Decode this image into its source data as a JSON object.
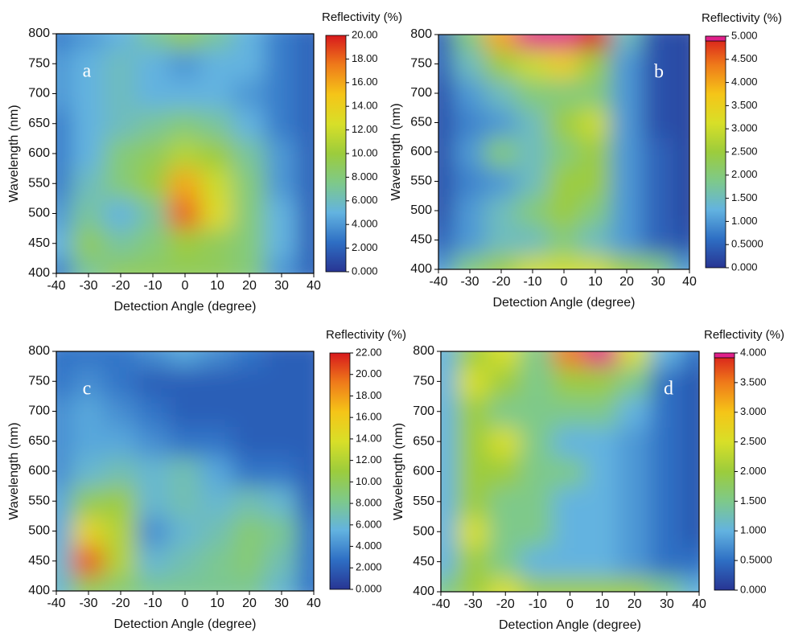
{
  "chart_data": [
    {
      "type": "heatmap",
      "label": "a",
      "x_label": "Detection Angle (degree)",
      "y_label": "Wavelength (nm)",
      "colorbar_label": "Reflectivity (%)",
      "x": [
        -40,
        -30,
        -20,
        -10,
        0,
        10,
        20,
        30,
        40
      ],
      "y": [
        400,
        450,
        500,
        550,
        600,
        650,
        700,
        750,
        800
      ],
      "values": [
        [
          3,
          7,
          9,
          9,
          9,
          9,
          8,
          4,
          2
        ],
        [
          5,
          9,
          7,
          8,
          10,
          9,
          8,
          5,
          2
        ],
        [
          4,
          7,
          5,
          7,
          18,
          13,
          8,
          5,
          2
        ],
        [
          3,
          6,
          8,
          10,
          16,
          12,
          8,
          4,
          2
        ],
        [
          3,
          5,
          8,
          9,
          11,
          10,
          7,
          4,
          2
        ],
        [
          3,
          5,
          6,
          7,
          8,
          7,
          5,
          3,
          2
        ],
        [
          4,
          5,
          6,
          5,
          5,
          5,
          4,
          3,
          2
        ],
        [
          4,
          5,
          6,
          5,
          4,
          5,
          5,
          3,
          2
        ],
        [
          3,
          4,
          5,
          7,
          9,
          7,
          5,
          3,
          2
        ]
      ],
      "xlim": [
        -40,
        40
      ],
      "ylim": [
        400,
        800
      ],
      "xticks": [
        -40,
        -30,
        -20,
        -10,
        0,
        10,
        20,
        30,
        40
      ],
      "yticks": [
        400,
        450,
        500,
        550,
        600,
        650,
        700,
        750,
        800
      ],
      "zlim": [
        0,
        20
      ],
      "zticks": [
        {
          "value": 0,
          "label": "0.000"
        },
        {
          "value": 2,
          "label": "2.000"
        },
        {
          "value": 4,
          "label": "4.000"
        },
        {
          "value": 6,
          "label": "6.000"
        },
        {
          "value": 8,
          "label": "8.000"
        },
        {
          "value": 10,
          "label": "10.00"
        },
        {
          "value": 12,
          "label": "12.00"
        },
        {
          "value": 14,
          "label": "14.00"
        },
        {
          "value": 16,
          "label": "16.00"
        },
        {
          "value": 18,
          "label": "18.00"
        },
        {
          "value": 20,
          "label": "20.00"
        }
      ],
      "colormap": [
        "#283593",
        "#2e6fc4",
        "#63b3e0",
        "#7ec98a",
        "#9ccc3c",
        "#d8df28",
        "#f5c518",
        "#ef7b1a",
        "#d7191c"
      ]
    },
    {
      "type": "heatmap",
      "label": "b",
      "x_label": "Detection Angle (degree)",
      "y_label": "Wavelength (nm)",
      "colorbar_label": "Reflectivity (%)",
      "x": [
        -40,
        -30,
        -20,
        -10,
        0,
        10,
        20,
        30,
        40
      ],
      "y": [
        400,
        450,
        500,
        550,
        600,
        650,
        700,
        750,
        800
      ],
      "values": [
        [
          1,
          2,
          2.5,
          3,
          3,
          3,
          2.5,
          2,
          1
        ],
        [
          0.5,
          1,
          1.5,
          1.5,
          2,
          1.5,
          1,
          0.5,
          0.3
        ],
        [
          0.3,
          1,
          1.5,
          2,
          2.5,
          2,
          1,
          0.5,
          0.2
        ],
        [
          0.3,
          0.8,
          1,
          1.5,
          2.5,
          2.5,
          1,
          0.5,
          0.2
        ],
        [
          0.3,
          1,
          2,
          1.5,
          2,
          2.5,
          1,
          0.5,
          0.2
        ],
        [
          0.3,
          0.8,
          1,
          1.5,
          2.5,
          3,
          1,
          0.3,
          0.2
        ],
        [
          0.3,
          1,
          1.5,
          2,
          2,
          2,
          1,
          0.3,
          0.2
        ],
        [
          0.5,
          1.5,
          2.5,
          3,
          3.5,
          2.5,
          1,
          0.3,
          0.2
        ],
        [
          0.5,
          2,
          4,
          5.5,
          6,
          5,
          1.5,
          0.3,
          0.2
        ]
      ],
      "xlim": [
        -40,
        40
      ],
      "ylim": [
        400,
        800
      ],
      "xticks": [
        -40,
        -30,
        -20,
        -10,
        0,
        10,
        20,
        30,
        40
      ],
      "yticks": [
        400,
        450,
        500,
        550,
        600,
        650,
        700,
        750,
        800
      ],
      "zlim": [
        0,
        5
      ],
      "zticks": [
        {
          "value": 0,
          "label": "0.000"
        },
        {
          "value": 0.5,
          "label": "0.5000"
        },
        {
          "value": 1,
          "label": "1.000"
        },
        {
          "value": 1.5,
          "label": "1.500"
        },
        {
          "value": 2,
          "label": "2.000"
        },
        {
          "value": 2.5,
          "label": "2.500"
        },
        {
          "value": 3,
          "label": "3.000"
        },
        {
          "value": 3.5,
          "label": "3.500"
        },
        {
          "value": 4,
          "label": "4.000"
        },
        {
          "value": 4.5,
          "label": "4.500"
        },
        {
          "value": 5,
          "label": "5.000"
        }
      ],
      "colormap": [
        "#283593",
        "#2e6fc4",
        "#63b3e0",
        "#7ec98a",
        "#9ccc3c",
        "#d8df28",
        "#f5c518",
        "#ef7b1a",
        "#d7191c"
      ],
      "over_color": "#e0208a"
    },
    {
      "type": "heatmap",
      "label": "c",
      "x_label": "Detection Angle (degree)",
      "y_label": "Wavelength (nm)",
      "colorbar_label": "Reflectivity (%)",
      "x": [
        -40,
        -30,
        -20,
        -10,
        0,
        10,
        20,
        30,
        40
      ],
      "y": [
        400,
        450,
        500,
        550,
        600,
        650,
        700,
        750,
        800
      ],
      "values": [
        [
          6,
          10,
          9,
          8,
          8,
          8,
          8,
          6,
          3
        ],
        [
          6,
          20,
          12,
          6,
          7,
          8,
          9,
          7,
          3
        ],
        [
          5,
          15,
          12,
          4,
          6,
          7,
          9,
          8,
          3
        ],
        [
          5,
          10,
          11,
          6,
          7,
          6,
          7,
          6,
          2
        ],
        [
          4,
          6,
          7,
          6,
          7,
          5,
          3,
          3,
          2
        ],
        [
          4,
          5,
          5,
          4,
          3,
          3,
          2,
          2,
          2
        ],
        [
          4,
          5,
          4,
          3,
          2,
          2,
          2,
          2,
          2
        ],
        [
          3,
          4,
          3,
          2,
          2,
          2,
          2,
          2,
          2
        ],
        [
          3,
          3,
          3,
          4,
          5,
          4,
          3,
          2,
          2
        ]
      ],
      "xlim": [
        -40,
        40
      ],
      "ylim": [
        400,
        800
      ],
      "xticks": [
        -40,
        -30,
        -20,
        -10,
        0,
        10,
        20,
        30,
        40
      ],
      "yticks": [
        400,
        450,
        500,
        550,
        600,
        650,
        700,
        750,
        800
      ],
      "zlim": [
        0,
        22
      ],
      "zticks": [
        {
          "value": 0,
          "label": "0.000"
        },
        {
          "value": 2,
          "label": "2.000"
        },
        {
          "value": 4,
          "label": "4.000"
        },
        {
          "value": 6,
          "label": "6.000"
        },
        {
          "value": 8,
          "label": "8.000"
        },
        {
          "value": 10,
          "label": "10.00"
        },
        {
          "value": 12,
          "label": "12.00"
        },
        {
          "value": 14,
          "label": "14.00"
        },
        {
          "value": 16,
          "label": "16.00"
        },
        {
          "value": 18,
          "label": "18.00"
        },
        {
          "value": 20,
          "label": "20.00"
        },
        {
          "value": 22,
          "label": "22.00"
        }
      ],
      "colormap": [
        "#283593",
        "#2e6fc4",
        "#63b3e0",
        "#7ec98a",
        "#9ccc3c",
        "#d8df28",
        "#f5c518",
        "#ef7b1a",
        "#d7191c"
      ]
    },
    {
      "type": "heatmap",
      "label": "d",
      "x_label": "Detection Angle (degree)",
      "y_label": "Wavelength (nm)",
      "colorbar_label": "Reflectivity (%)",
      "x": [
        -40,
        -30,
        -20,
        -10,
        0,
        10,
        20,
        30,
        40
      ],
      "y": [
        400,
        450,
        500,
        550,
        600,
        650,
        700,
        750,
        800
      ],
      "values": [
        [
          1.5,
          2,
          2.5,
          2,
          2,
          2,
          2,
          1.5,
          1
        ],
        [
          1,
          2,
          1.5,
          1,
          1,
          1,
          0.8,
          0.5,
          0.5
        ],
        [
          1,
          2.5,
          1.5,
          1.5,
          1,
          1,
          0.8,
          0.5,
          0.3
        ],
        [
          1,
          2,
          1.5,
          1.5,
          1,
          1,
          0.8,
          0.5,
          0.3
        ],
        [
          1,
          2,
          2,
          1.5,
          1.5,
          1,
          0.8,
          0.5,
          0.3
        ],
        [
          1,
          2,
          2.5,
          1.5,
          1,
          1,
          0.8,
          0.5,
          0.3
        ],
        [
          1,
          2,
          1.5,
          1.5,
          1.5,
          1.5,
          1,
          0.5,
          0.3
        ],
        [
          1,
          2.5,
          2,
          1.5,
          2,
          2,
          1.5,
          0.5,
          0.3
        ],
        [
          1,
          2,
          2.5,
          1.5,
          3.5,
          4.5,
          2.5,
          1,
          0.5
        ]
      ],
      "xlim": [
        -40,
        40
      ],
      "ylim": [
        400,
        800
      ],
      "xticks": [
        -40,
        -30,
        -20,
        -10,
        0,
        10,
        20,
        30,
        40
      ],
      "yticks": [
        400,
        450,
        500,
        550,
        600,
        650,
        700,
        750,
        800
      ],
      "zlim": [
        0,
        4
      ],
      "zticks": [
        {
          "value": 0,
          "label": "0.000"
        },
        {
          "value": 0.5,
          "label": "0.5000"
        },
        {
          "value": 1,
          "label": "1.000"
        },
        {
          "value": 1.5,
          "label": "1.500"
        },
        {
          "value": 2,
          "label": "2.000"
        },
        {
          "value": 2.5,
          "label": "2.500"
        },
        {
          "value": 3,
          "label": "3.000"
        },
        {
          "value": 3.5,
          "label": "3.500"
        },
        {
          "value": 4,
          "label": "4.000"
        }
      ],
      "colormap": [
        "#283593",
        "#2e6fc4",
        "#63b3e0",
        "#7ec98a",
        "#9ccc3c",
        "#d8df28",
        "#f5c518",
        "#ef7b1a",
        "#d7191c"
      ],
      "over_color": "#e0208a"
    }
  ]
}
